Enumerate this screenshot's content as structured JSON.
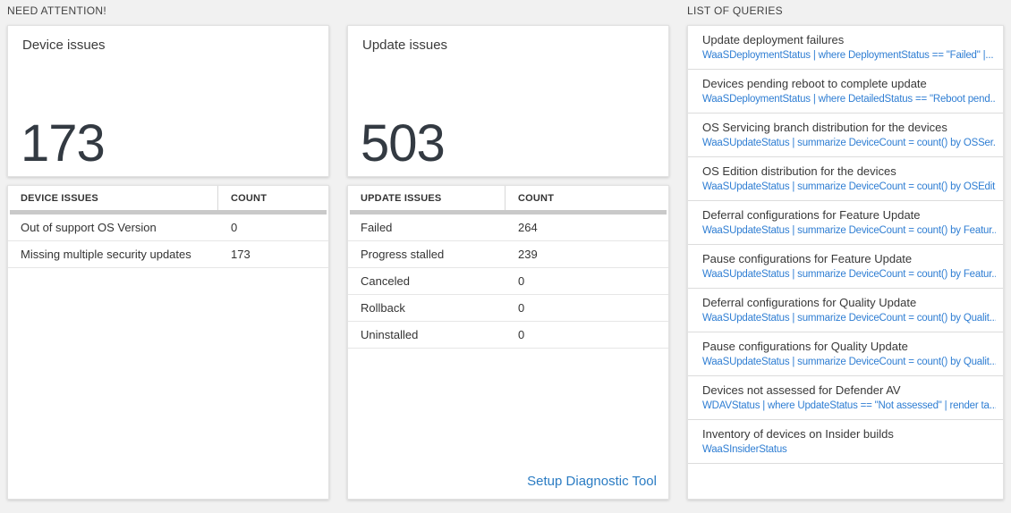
{
  "need_attention": {
    "title": "NEED ATTENTION!",
    "tiles": [
      {
        "title": "Device issues",
        "big_number": "173",
        "table": {
          "headers": [
            "DEVICE ISSUES",
            "COUNT"
          ],
          "rows": [
            [
              "Out of support OS Version",
              "0"
            ],
            [
              "Missing multiple security updates",
              "173"
            ]
          ]
        }
      },
      {
        "title": "Update issues",
        "big_number": "503",
        "table": {
          "headers": [
            "UPDATE ISSUES",
            "COUNT"
          ],
          "rows": [
            [
              "Failed",
              "264"
            ],
            [
              "Progress stalled",
              "239"
            ],
            [
              "Canceled",
              "0"
            ],
            [
              "Rollback",
              "0"
            ],
            [
              "Uninstalled",
              "0"
            ]
          ]
        },
        "footer_link": "Setup Diagnostic Tool"
      }
    ]
  },
  "list_of_queries": {
    "title": "LIST OF QUERIES",
    "queries": [
      {
        "title": "Update deployment failures",
        "query": "WaaSDeploymentStatus | where DeploymentStatus == \"Failed\" |..."
      },
      {
        "title": "Devices pending reboot to complete update",
        "query": "WaaSDeploymentStatus | where DetailedStatus == \"Reboot pend..."
      },
      {
        "title": "OS Servicing branch distribution for the devices",
        "query": "WaaSUpdateStatus | summarize DeviceCount = count() by OSSer..."
      },
      {
        "title": "OS Edition distribution for the devices",
        "query": "WaaSUpdateStatus | summarize DeviceCount = count() by OSEdit..."
      },
      {
        "title": "Deferral configurations for Feature Update",
        "query": "WaaSUpdateStatus | summarize DeviceCount = count() by Featur..."
      },
      {
        "title": "Pause configurations for Feature Update",
        "query": "WaaSUpdateStatus | summarize DeviceCount = count() by Featur..."
      },
      {
        "title": "Deferral configurations for Quality Update",
        "query": "WaaSUpdateStatus | summarize DeviceCount = count() by Qualit..."
      },
      {
        "title": "Pause configurations for Quality Update",
        "query": "WaaSUpdateStatus | summarize DeviceCount = count() by Qualit..."
      },
      {
        "title": "Devices not assessed for Defender AV",
        "query": "WDAVStatus | where UpdateStatus == \"Not assessed\" | render ta..."
      },
      {
        "title": "Inventory of devices on Insider builds",
        "query": "WaaSInsiderStatus"
      }
    ]
  },
  "colors": {
    "page_background": "#f1f1f1",
    "panel_background": "#ffffff",
    "big_number_text": "#333a42",
    "query_link_blue": "#2f7ed3",
    "footer_link_blue": "#2b7cc3",
    "grid_bar_gray": "#c9c9c9"
  }
}
